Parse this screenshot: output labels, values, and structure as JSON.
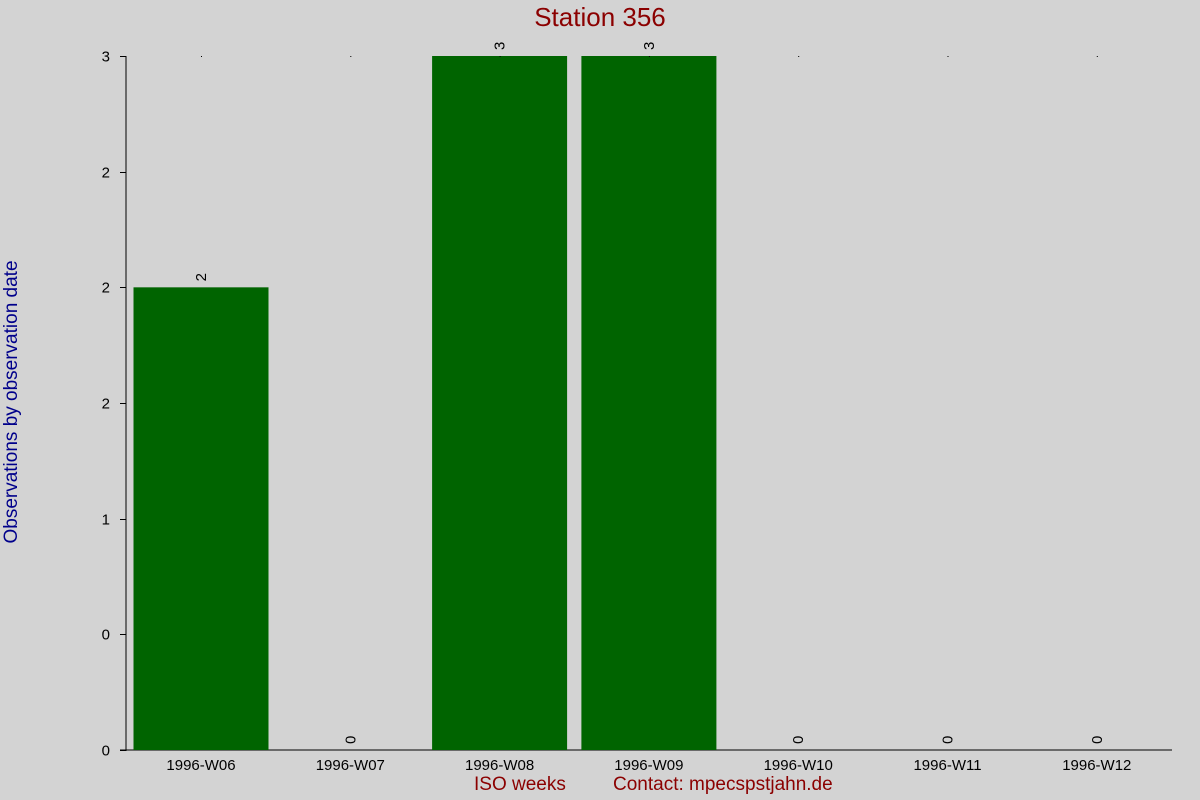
{
  "chart_data": {
    "type": "bar",
    "title": "Station 356",
    "xlabel": "ISO weeks",
    "ylabel": "Observations by observation date",
    "footer": "Contact: mpecspstjahn.de",
    "categories": [
      "1996-W06",
      "1996-W07",
      "1996-W08",
      "1996-W09",
      "1996-W10",
      "1996-W11",
      "1996-W12"
    ],
    "values": [
      2,
      0,
      3,
      3,
      0,
      0,
      0
    ],
    "data_labels": [
      "2",
      "0",
      "3",
      "3",
      "0",
      "0",
      "0"
    ],
    "ylim": [
      0,
      3
    ],
    "yticks": [
      0,
      0.5,
      1,
      1.5,
      2,
      2.5,
      3
    ],
    "ytick_labels": [
      "0",
      "0",
      "1",
      "2",
      "2",
      "2",
      "3"
    ],
    "grid": false,
    "legend": "none",
    "colors": {
      "bar": "#006400",
      "background": "#d3d3d3",
      "title": "#8b0000",
      "ylabel": "#00008b",
      "xlabel": "#8b0000"
    }
  }
}
